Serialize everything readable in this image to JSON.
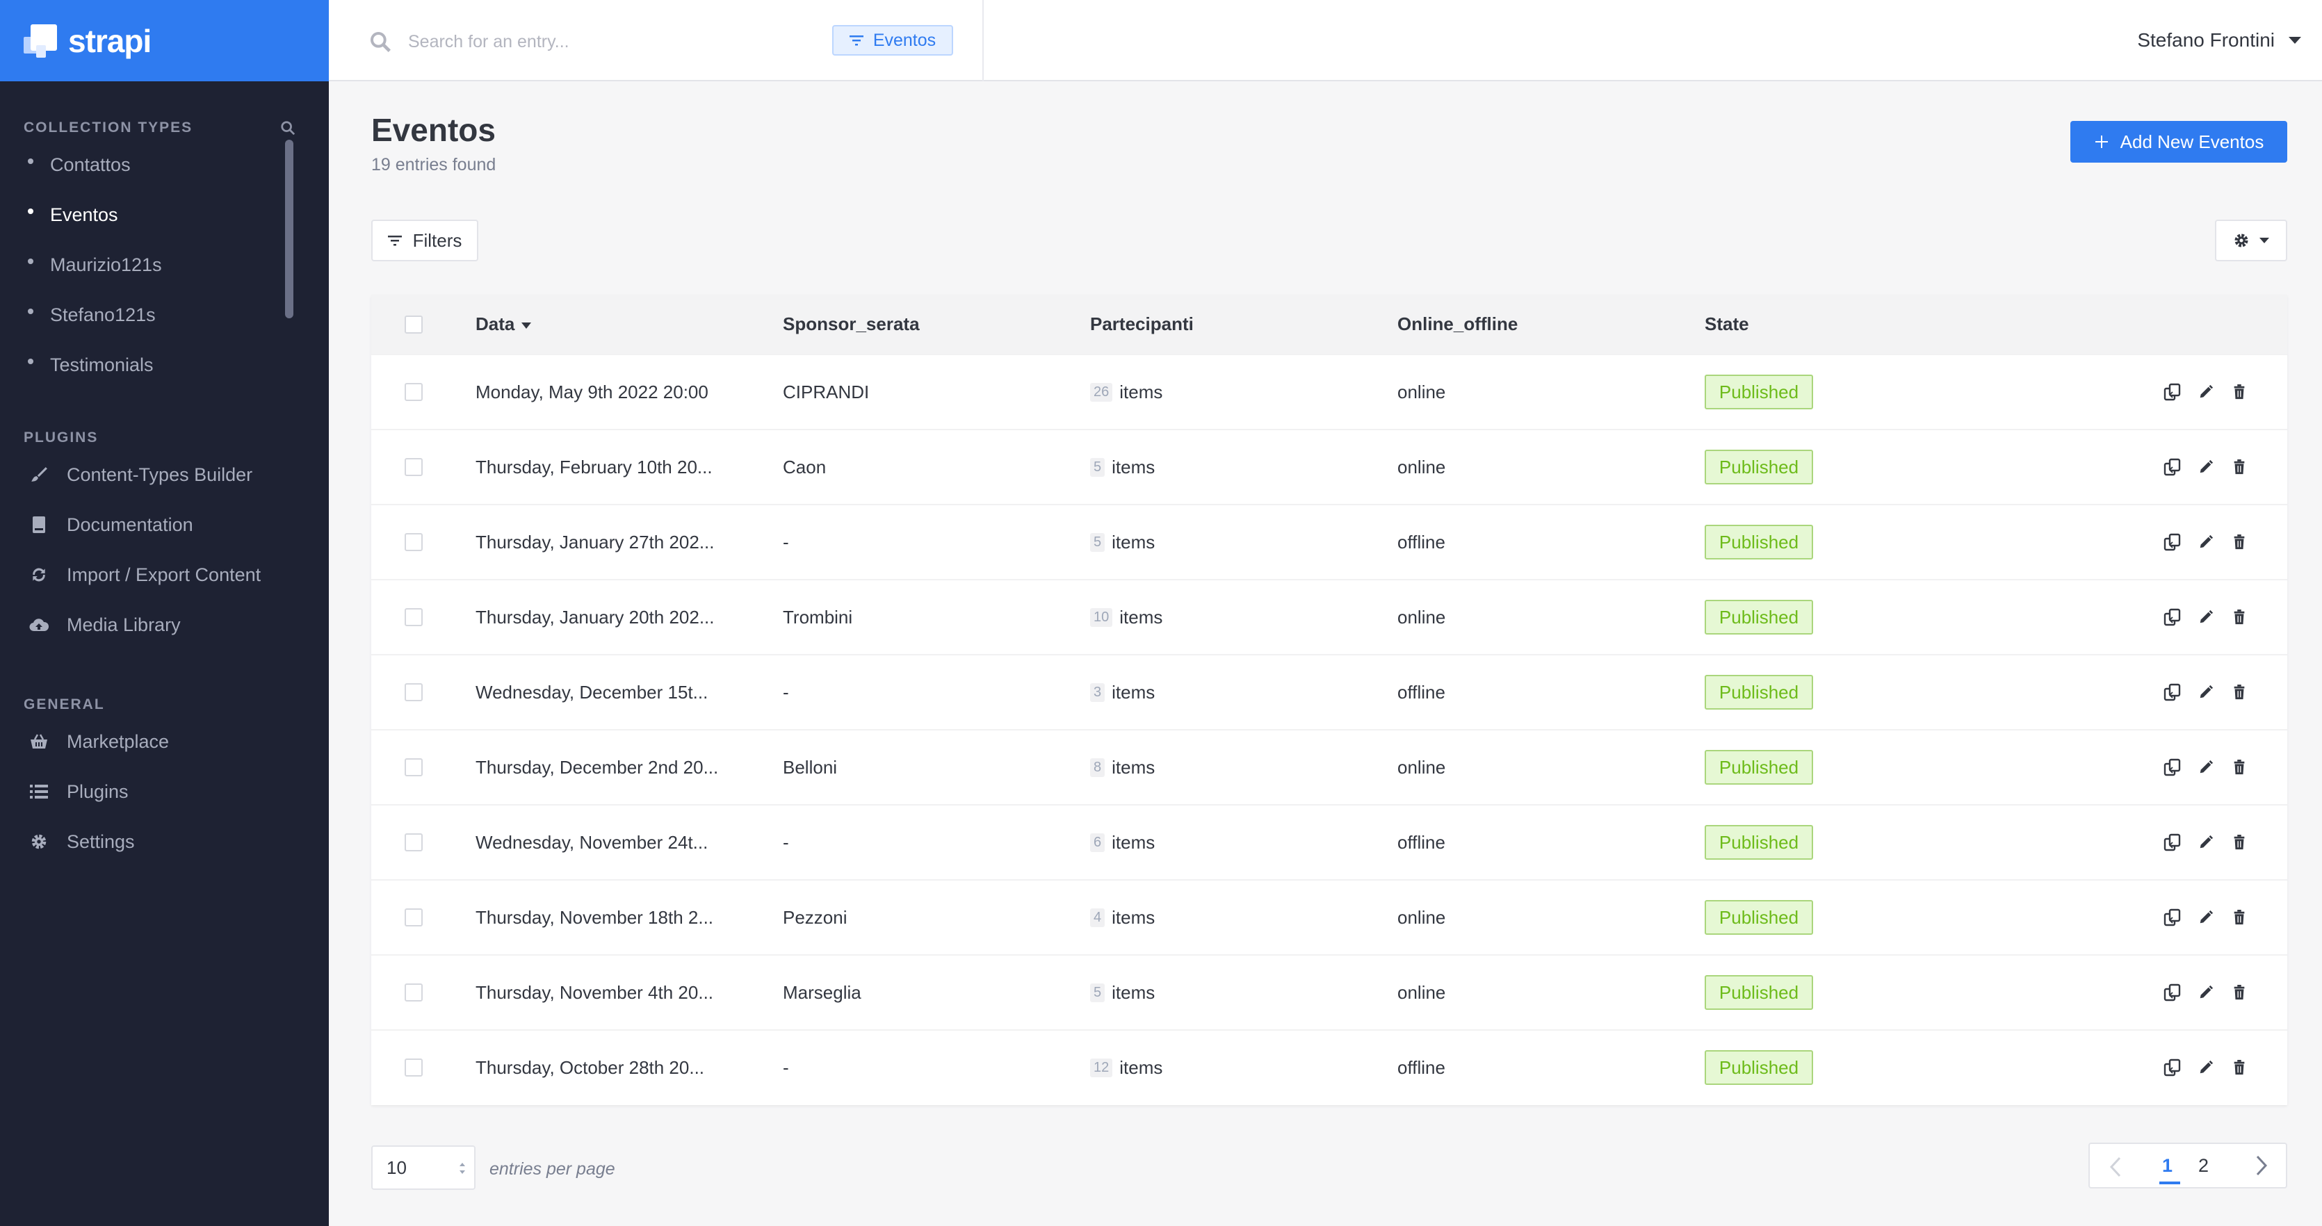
{
  "brand": {
    "name": "strapi"
  },
  "sidebar": {
    "collection_types_title": "COLLECTION TYPES",
    "collection_types": [
      {
        "label": "Contattos",
        "active": false
      },
      {
        "label": "Eventos",
        "active": true
      },
      {
        "label": "Maurizio121s",
        "active": false
      },
      {
        "label": "Stefano121s",
        "active": false
      },
      {
        "label": "Testimonials",
        "active": false
      }
    ],
    "plugins_title": "PLUGINS",
    "plugins": [
      {
        "label": "Content-Types Builder",
        "icon": "paintbrush-icon"
      },
      {
        "label": "Documentation",
        "icon": "book-icon"
      },
      {
        "label": "Import / Export Content",
        "icon": "sync-icon"
      },
      {
        "label": "Media Library",
        "icon": "cloud-upload-icon"
      }
    ],
    "general_title": "GENERAL",
    "general": [
      {
        "label": "Marketplace",
        "icon": "basket-icon"
      },
      {
        "label": "Plugins",
        "icon": "list-icon"
      },
      {
        "label": "Settings",
        "icon": "gear-icon"
      }
    ]
  },
  "header": {
    "search_placeholder": "Search for an entry...",
    "filter_tag": "Eventos",
    "user": "Stefano Frontini"
  },
  "main": {
    "title": "Eventos",
    "subtitle": "19 entries found",
    "add_button": "Add New Eventos",
    "filters_button": "Filters"
  },
  "table": {
    "columns": [
      "Data",
      "Sponsor_serata",
      "Partecipanti",
      "Online_offline",
      "State"
    ],
    "items_label": "items",
    "rows": [
      {
        "data": "Monday, May 9th 2022 20:00",
        "sponsor": "CIPRANDI",
        "count": "26",
        "online": "online",
        "state": "Published"
      },
      {
        "data": "Thursday, February 10th 20...",
        "sponsor": "Caon",
        "count": "5",
        "online": "online",
        "state": "Published"
      },
      {
        "data": "Thursday, January 27th 202...",
        "sponsor": "-",
        "count": "5",
        "online": "offline",
        "state": "Published"
      },
      {
        "data": "Thursday, January 20th 202...",
        "sponsor": "Trombini",
        "count": "10",
        "online": "online",
        "state": "Published"
      },
      {
        "data": "Wednesday, December 15t...",
        "sponsor": "-",
        "count": "3",
        "online": "offline",
        "state": "Published"
      },
      {
        "data": "Thursday, December 2nd 20...",
        "sponsor": "Belloni",
        "count": "8",
        "online": "online",
        "state": "Published"
      },
      {
        "data": "Wednesday, November 24t...",
        "sponsor": "-",
        "count": "6",
        "online": "offline",
        "state": "Published"
      },
      {
        "data": "Thursday, November 18th 2...",
        "sponsor": "Pezzoni",
        "count": "4",
        "online": "online",
        "state": "Published"
      },
      {
        "data": "Thursday, November 4th 20...",
        "sponsor": "Marseglia",
        "count": "5",
        "online": "online",
        "state": "Published"
      },
      {
        "data": "Thursday, October 28th 20...",
        "sponsor": "-",
        "count": "12",
        "online": "offline",
        "state": "Published"
      }
    ]
  },
  "footer": {
    "per_page_value": "10",
    "per_page_label": "entries per page",
    "pages": [
      "1",
      "2"
    ]
  },
  "colors": {
    "accent": "#2f7bf0",
    "sidebar_bg": "#1e2233",
    "published_bg": "#e6f8d4",
    "published_text": "#6dbb1a"
  }
}
